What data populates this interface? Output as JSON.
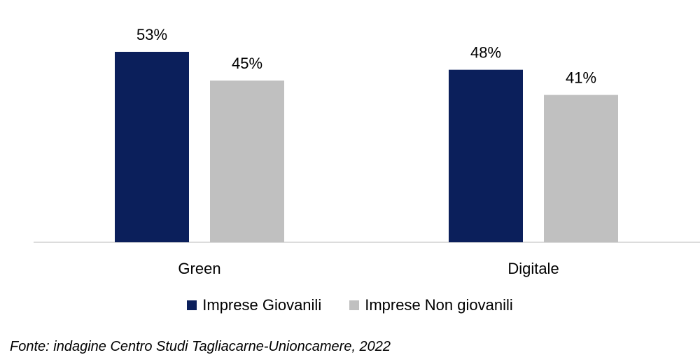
{
  "chart_data": {
    "type": "bar",
    "categories": [
      "Green",
      "Digitale"
    ],
    "series": [
      {
        "name": "Imprese Giovanili",
        "values": [
          53,
          48
        ],
        "labels": [
          "53%",
          "48%"
        ],
        "color": "#0b1f5b"
      },
      {
        "name": "Imprese Non giovanili",
        "values": [
          45,
          41
        ],
        "labels": [
          "45%",
          "41%"
        ],
        "color": "#c0c0c0"
      }
    ],
    "ylim": [
      0,
      53
    ],
    "grid": false,
    "legend_position": "bottom"
  },
  "source": "Fonte: indagine Centro Studi Tagliacarne-Unioncamere, 2022"
}
